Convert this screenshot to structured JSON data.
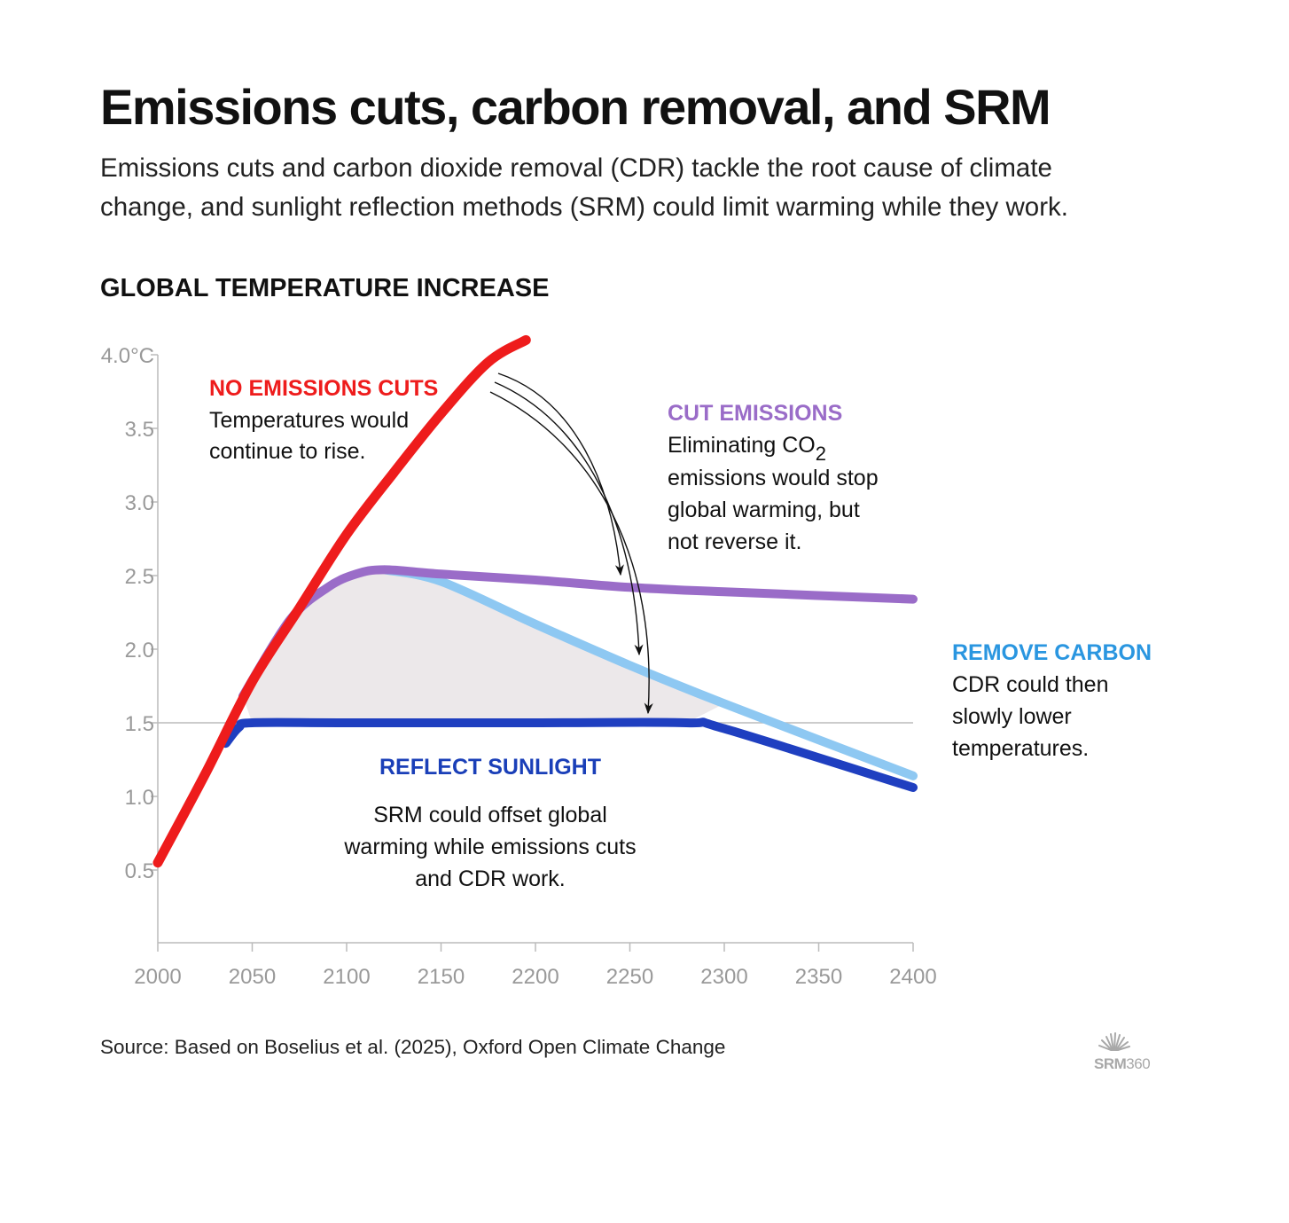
{
  "header": {
    "title": "Emissions cuts, carbon removal, and SRM",
    "subtitle_line1": "Emissions cuts and carbon dioxide removal (CDR) tackle the root cause of climate",
    "subtitle_line2": "change, and sunlight reflection methods (SRM) could limit warming while they work."
  },
  "chart_title": "GLOBAL TEMPERATURE INCREASE",
  "source": "Source: Based on Boselius et al. (2025), Oxford Open Climate Change",
  "logo": {
    "text_bold": "SRM",
    "text_light": "360",
    "icon": "sunburst-icon"
  },
  "colors": {
    "no_cuts": "#ee1c1c",
    "cut_emissions": "#9a6cc8",
    "remove_carbon": "#8ec8f2",
    "reflect_sunlight": "#1f3fc0",
    "fill": "#ece8ea",
    "axis": "#bbbbbb",
    "tick_text": "#999999",
    "remove_carbon_label": "#2a96e0",
    "reflect_sunlight_label": "#1a3fb8"
  },
  "annotations": {
    "no_cuts": {
      "head": "NO EMISSIONS CUTS",
      "body": [
        "Temperatures would",
        "continue to rise."
      ]
    },
    "cut_emissions": {
      "head": "CUT EMISSIONS",
      "body_line1": "Eliminating CO",
      "body_line1_sub": "2",
      "body_rest": [
        "emissions would stop",
        "global warming, but",
        "not reverse it."
      ]
    },
    "remove_carbon": {
      "head": "REMOVE CARBON",
      "body": [
        "CDR could then",
        "slowly lower",
        "temperatures."
      ]
    },
    "reflect_sunlight": {
      "head": "REFLECT SUNLIGHT",
      "body": [
        "SRM could offset global",
        "warming while emissions cuts",
        "and CDR work."
      ]
    }
  },
  "chart_data": {
    "type": "line",
    "title": "GLOBAL TEMPERATURE INCREASE",
    "xlabel": "",
    "ylabel": "",
    "xlim": [
      2000,
      2400
    ],
    "ylim": [
      0,
      4.0
    ],
    "x_ticks": [
      2000,
      2050,
      2100,
      2150,
      2200,
      2250,
      2300,
      2350,
      2400
    ],
    "y_ticks": [
      {
        "value": 4.0,
        "label": "4.0°C"
      },
      {
        "value": 3.5,
        "label": "3.5"
      },
      {
        "value": 3.0,
        "label": "3.0"
      },
      {
        "value": 2.5,
        "label": "2.5"
      },
      {
        "value": 2.0,
        "label": "2.0"
      },
      {
        "value": 1.5,
        "label": "1.5"
      },
      {
        "value": 1.0,
        "label": "1.0"
      },
      {
        "value": 0.5,
        "label": "0.5"
      }
    ],
    "reference_line": 1.5,
    "grid": false,
    "series": [
      {
        "name": "NO EMISSIONS CUTS",
        "key": "no_cuts",
        "x": [
          2000,
          2025,
          2050,
          2075,
          2100,
          2125,
          2150,
          2175,
          2195
        ],
        "y": [
          0.55,
          1.15,
          1.78,
          2.28,
          2.78,
          3.2,
          3.6,
          3.95,
          4.1
        ]
      },
      {
        "name": "CUT EMISSIONS",
        "key": "cut_emissions",
        "x": [
          2045,
          2070,
          2090,
          2105,
          2120,
          2150,
          2200,
          2250,
          2300,
          2400
        ],
        "y": [
          1.68,
          2.2,
          2.42,
          2.51,
          2.54,
          2.51,
          2.47,
          2.42,
          2.39,
          2.34
        ]
      },
      {
        "name": "REMOVE CARBON",
        "key": "remove_carbon",
        "x": [
          2120,
          2150,
          2200,
          2250,
          2300,
          2400
        ],
        "y": [
          2.54,
          2.46,
          2.17,
          1.89,
          1.63,
          1.14
        ]
      },
      {
        "name": "REFLECT SUNLIGHT",
        "key": "reflect_sunlight",
        "x": [
          2036,
          2043,
          2050,
          2100,
          2200,
          2280,
          2300,
          2400
        ],
        "y": [
          1.36,
          1.47,
          1.5,
          1.5,
          1.5,
          1.5,
          1.46,
          1.06
        ]
      }
    ]
  }
}
